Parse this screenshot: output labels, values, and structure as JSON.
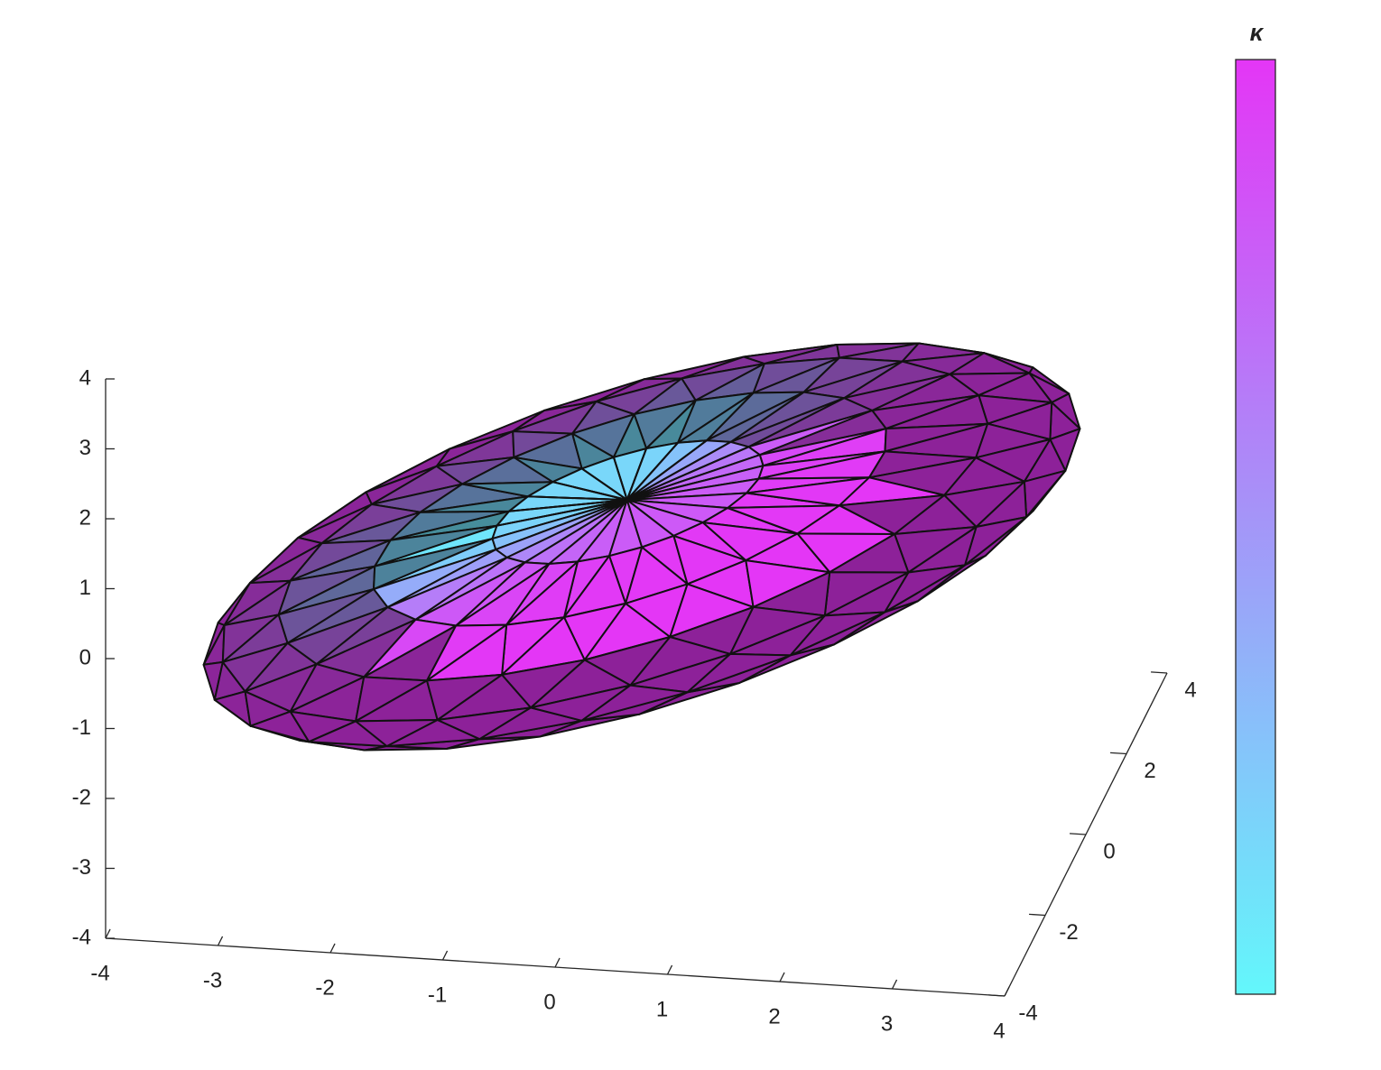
{
  "chart_data": {
    "type": "mesh3d",
    "colorbar_label": "κ",
    "xlim": [
      -4,
      4
    ],
    "xticks": [
      -4,
      -3,
      -2,
      -1,
      0,
      1,
      2,
      3,
      4
    ],
    "ylim": [
      -4,
      4
    ],
    "yticks": [
      -4,
      -2,
      0,
      2,
      4
    ],
    "zlim": [
      -4,
      4
    ],
    "zticks": [
      -4,
      -3,
      -2,
      -1,
      0,
      1,
      2,
      3,
      4
    ],
    "colormap": [
      "#63f7fb",
      "#e436f6"
    ]
  }
}
